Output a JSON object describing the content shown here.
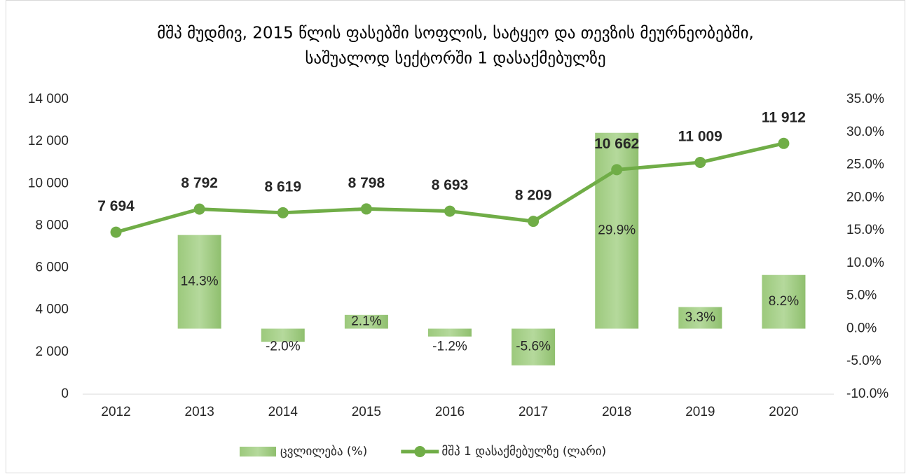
{
  "chart_data": {
    "type": "combo",
    "title": [
      "მშპ მუდმივ, 2015 წლის ფასებში სოფლის, სატყეო და თევზის მეურნეობებში,",
      "საშუალოდ სექტორში 1 დასაქმებულზე"
    ],
    "categories": [
      "2012",
      "2013",
      "2014",
      "2015",
      "2016",
      "2017",
      "2018",
      "2019",
      "2020"
    ],
    "series": [
      {
        "name": "ცვლილება (%)",
        "type": "bar",
        "axis": "y2",
        "color": "#a9d18e",
        "values": [
          null,
          14.3,
          -2.0,
          2.1,
          -1.2,
          -5.6,
          29.9,
          3.3,
          8.2
        ],
        "value_labels": [
          null,
          "14.3%",
          "-2.0%",
          "2.1%",
          "-1.2%",
          "-5.6%",
          "29.9%",
          "3.3%",
          "8.2%"
        ]
      },
      {
        "name": "მშპ 1 დასაქმებულზე (ლარი)",
        "type": "line",
        "axis": "y",
        "color": "#70ad47",
        "values": [
          7694,
          8792,
          8619,
          8798,
          8693,
          8209,
          10662,
          11009,
          11912
        ],
        "value_labels": [
          "7 694",
          "8 792",
          "8 619",
          "8 798",
          "8 693",
          "8 209",
          "10 662",
          "11 009",
          "11 912"
        ]
      }
    ],
    "ylim": [
      0,
      14000
    ],
    "yticks": [
      0,
      {
        "value": 2000,
        "label": "2 000"
      },
      {
        "value": 4000,
        "label": "4 000"
      },
      {
        "value": 6000,
        "label": "6 000"
      },
      {
        "value": 8000,
        "label": "8 000"
      },
      {
        "value": 10000,
        "label": "10 000"
      },
      {
        "value": 12000,
        "label": "12 000"
      },
      {
        "value": 14000,
        "label": "14 000"
      }
    ],
    "y2lim": [
      -10,
      35
    ],
    "y2ticks": [
      {
        "value": -10,
        "label": "-10.0%"
      },
      {
        "value": -5,
        "label": "-5.0%"
      },
      {
        "value": 0,
        "label": "0.0%"
      },
      {
        "value": 5,
        "label": "5.0%"
      },
      {
        "value": 10,
        "label": "10.0%"
      },
      {
        "value": 15,
        "label": "15.0%"
      },
      {
        "value": 20,
        "label": "20.0%"
      },
      {
        "value": 25,
        "label": "25.0%"
      },
      {
        "value": 30,
        "label": "30.0%"
      },
      {
        "value": 35,
        "label": "35.0%"
      }
    ],
    "grid": false,
    "legend": "bottom"
  }
}
